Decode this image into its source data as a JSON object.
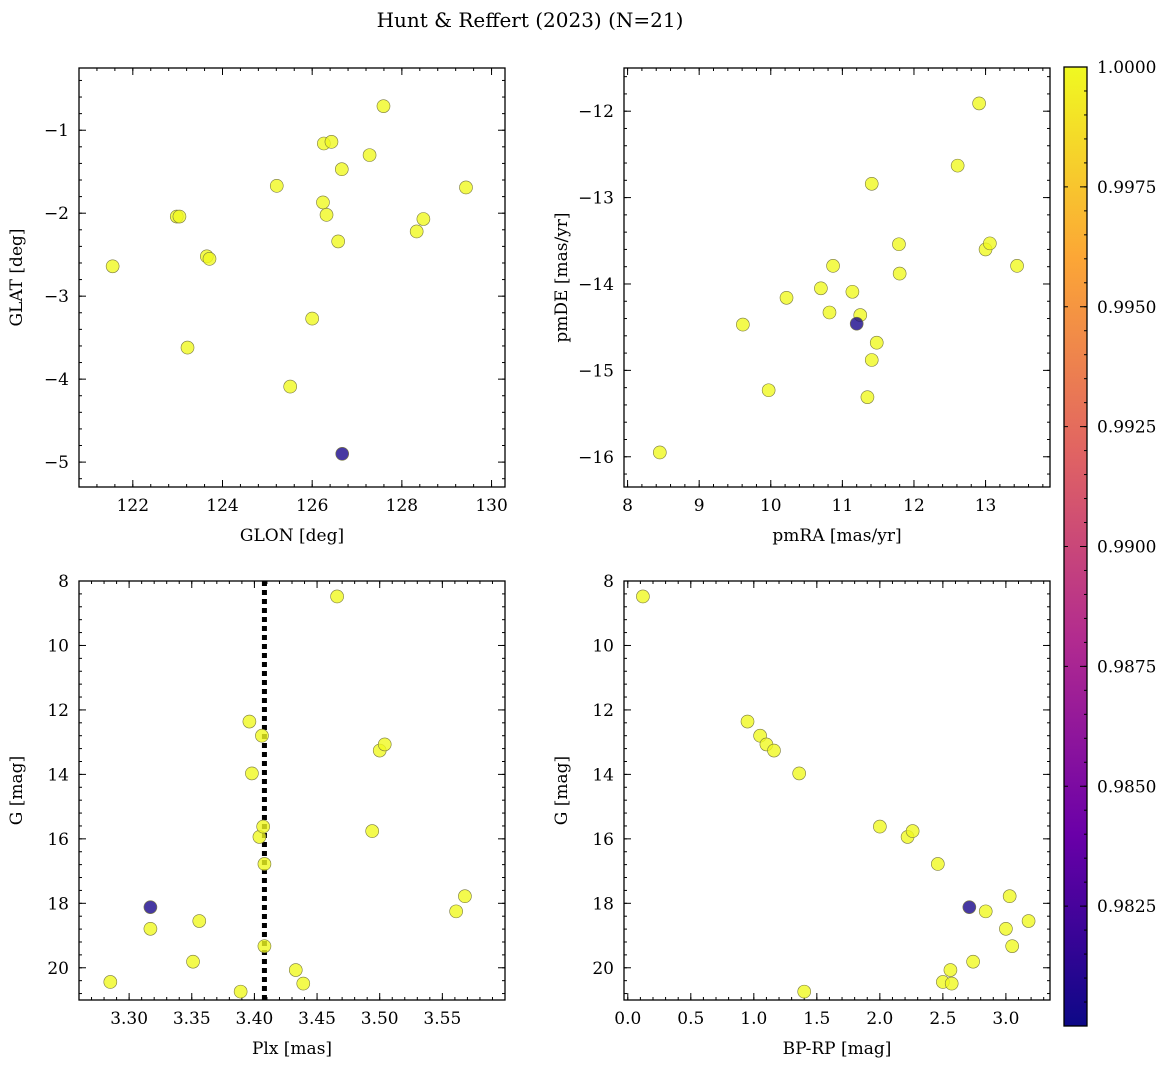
{
  "figure": {
    "title": "Hunt & Reffert (2023) (N=21)"
  },
  "colorbar": {
    "min": 0.98,
    "max": 1.0,
    "colormap": [
      "#0d0887",
      "#6a00a8",
      "#b12a90",
      "#e16462",
      "#fca636",
      "#f0f921"
    ],
    "ticks": [
      "0.9825",
      "0.9850",
      "0.9875",
      "0.9900",
      "0.9925",
      "0.9950",
      "0.9975",
      "1.0000"
    ],
    "tick_values": [
      0.9825,
      0.985,
      0.9875,
      0.99,
      0.9925,
      0.995,
      0.9975,
      1.0
    ]
  },
  "chart_data": [
    {
      "type": "scatter",
      "title": "",
      "xlabel": "GLON [deg]",
      "ylabel": "GLAT [deg]",
      "xlim": [
        120.8,
        130.3
      ],
      "ylim": [
        -5.3,
        -0.25
      ],
      "x_reversed": false,
      "y_reversed": false,
      "xticks": [
        122,
        124,
        126,
        128,
        130
      ],
      "xtick_labels": [
        "122",
        "124",
        "126",
        "128",
        "130"
      ],
      "yticks": [
        -5,
        -4,
        -3,
        -2,
        -1
      ],
      "ytick_labels": [
        "−5",
        "−4",
        "−3",
        "−2",
        "−1"
      ],
      "points": [
        {
          "x": 121.55,
          "y": -2.64,
          "c": 1.0
        },
        {
          "x": 122.98,
          "y": -2.04,
          "c": 1.0
        },
        {
          "x": 123.04,
          "y": -2.04,
          "c": 1.0
        },
        {
          "x": 123.22,
          "y": -3.62,
          "c": 1.0
        },
        {
          "x": 123.65,
          "y": -2.52,
          "c": 1.0
        },
        {
          "x": 123.71,
          "y": -2.55,
          "c": 1.0
        },
        {
          "x": 125.21,
          "y": -1.67,
          "c": 1.0
        },
        {
          "x": 125.51,
          "y": -4.09,
          "c": 1.0
        },
        {
          "x": 126.0,
          "y": -3.27,
          "c": 1.0
        },
        {
          "x": 126.24,
          "y": -1.87,
          "c": 1.0
        },
        {
          "x": 126.26,
          "y": -1.16,
          "c": 1.0
        },
        {
          "x": 126.32,
          "y": -2.02,
          "c": 1.0
        },
        {
          "x": 126.43,
          "y": -1.14,
          "c": 1.0
        },
        {
          "x": 126.58,
          "y": -2.34,
          "c": 1.0
        },
        {
          "x": 126.66,
          "y": -1.47,
          "c": 1.0
        },
        {
          "x": 127.28,
          "y": -1.3,
          "c": 1.0
        },
        {
          "x": 127.59,
          "y": -0.71,
          "c": 1.0
        },
        {
          "x": 128.33,
          "y": -2.22,
          "c": 1.0
        },
        {
          "x": 128.48,
          "y": -2.07,
          "c": 1.0
        },
        {
          "x": 129.43,
          "y": -1.69,
          "c": 1.0
        },
        {
          "x": 126.67,
          "y": -4.9,
          "c": 0.9805
        }
      ]
    },
    {
      "type": "scatter",
      "title": "",
      "xlabel": "pmRA [mas/yr]",
      "ylabel": "pmDE [mas/yr]",
      "xlim": [
        7.95,
        13.9
      ],
      "ylim": [
        -16.35,
        -11.5
      ],
      "x_reversed": false,
      "y_reversed": false,
      "xticks": [
        8,
        9,
        10,
        11,
        12,
        13
      ],
      "xtick_labels": [
        "8",
        "9",
        "10",
        "11",
        "12",
        "13"
      ],
      "yticks": [
        -16,
        -15,
        -14,
        -13,
        -12
      ],
      "ytick_labels": [
        "−16",
        "−15",
        "−14",
        "−13",
        "−12"
      ],
      "points": [
        {
          "x": 8.45,
          "y": -15.95,
          "c": 1.0
        },
        {
          "x": 9.61,
          "y": -14.47,
          "c": 1.0
        },
        {
          "x": 9.97,
          "y": -15.23,
          "c": 1.0
        },
        {
          "x": 10.22,
          "y": -14.16,
          "c": 1.0
        },
        {
          "x": 10.7,
          "y": -14.05,
          "c": 1.0
        },
        {
          "x": 10.82,
          "y": -14.33,
          "c": 1.0
        },
        {
          "x": 10.87,
          "y": -13.79,
          "c": 1.0
        },
        {
          "x": 11.14,
          "y": -14.09,
          "c": 1.0
        },
        {
          "x": 11.25,
          "y": -14.36,
          "c": 1.0
        },
        {
          "x": 11.35,
          "y": -15.31,
          "c": 1.0
        },
        {
          "x": 11.41,
          "y": -12.84,
          "c": 1.0
        },
        {
          "x": 11.41,
          "y": -14.88,
          "c": 1.0
        },
        {
          "x": 11.48,
          "y": -14.68,
          "c": 1.0
        },
        {
          "x": 11.79,
          "y": -13.54,
          "c": 1.0
        },
        {
          "x": 11.8,
          "y": -13.88,
          "c": 1.0
        },
        {
          "x": 12.61,
          "y": -12.63,
          "c": 1.0
        },
        {
          "x": 12.91,
          "y": -11.91,
          "c": 1.0
        },
        {
          "x": 13.0,
          "y": -13.6,
          "c": 1.0
        },
        {
          "x": 13.06,
          "y": -13.53,
          "c": 1.0
        },
        {
          "x": 13.44,
          "y": -13.79,
          "c": 1.0
        },
        {
          "x": 11.2,
          "y": -14.46,
          "c": 0.9805
        }
      ]
    },
    {
      "type": "scatter",
      "title": "",
      "xlabel": "Plx [mas]",
      "ylabel": "G [mag]",
      "xlim": [
        3.26,
        3.6
      ],
      "ylim": [
        8.0,
        21.0
      ],
      "x_reversed": false,
      "y_reversed": true,
      "xticks": [
        3.3,
        3.35,
        3.4,
        3.45,
        3.5,
        3.55
      ],
      "xtick_labels": [
        "3.30",
        "3.35",
        "3.40",
        "3.45",
        "3.50",
        "3.55"
      ],
      "yticks": [
        8,
        10,
        12,
        14,
        16,
        18,
        20
      ],
      "ytick_labels": [
        "8",
        "10",
        "12",
        "14",
        "16",
        "18",
        "20"
      ],
      "vline": {
        "x": 3.408,
        "style": "dotted",
        "color": "#000000"
      },
      "points": [
        {
          "x": 3.285,
          "y": 20.44,
          "c": 1.0
        },
        {
          "x": 3.317,
          "y": 18.79,
          "c": 1.0
        },
        {
          "x": 3.351,
          "y": 19.81,
          "c": 1.0
        },
        {
          "x": 3.356,
          "y": 18.55,
          "c": 1.0
        },
        {
          "x": 3.389,
          "y": 20.74,
          "c": 1.0
        },
        {
          "x": 3.396,
          "y": 12.36,
          "c": 1.0
        },
        {
          "x": 3.398,
          "y": 13.97,
          "c": 1.0
        },
        {
          "x": 3.404,
          "y": 15.94,
          "c": 1.0
        },
        {
          "x": 3.406,
          "y": 12.8,
          "c": 1.0
        },
        {
          "x": 3.407,
          "y": 15.62,
          "c": 1.0
        },
        {
          "x": 3.408,
          "y": 16.78,
          "c": 1.0
        },
        {
          "x": 3.408,
          "y": 19.33,
          "c": 1.0
        },
        {
          "x": 3.433,
          "y": 20.07,
          "c": 1.0
        },
        {
          "x": 3.439,
          "y": 20.49,
          "c": 1.0
        },
        {
          "x": 3.466,
          "y": 8.48,
          "c": 1.0
        },
        {
          "x": 3.494,
          "y": 15.76,
          "c": 1.0
        },
        {
          "x": 3.5,
          "y": 13.26,
          "c": 1.0
        },
        {
          "x": 3.504,
          "y": 13.07,
          "c": 1.0
        },
        {
          "x": 3.561,
          "y": 18.25,
          "c": 1.0
        },
        {
          "x": 3.568,
          "y": 17.78,
          "c": 1.0
        },
        {
          "x": 3.317,
          "y": 18.12,
          "c": 0.9805
        }
      ]
    },
    {
      "type": "scatter",
      "title": "",
      "xlabel": "BP-RP [mag]",
      "ylabel": "G [mag]",
      "xlim": [
        -0.03,
        3.35
      ],
      "ylim": [
        8.0,
        21.0
      ],
      "x_reversed": false,
      "y_reversed": true,
      "xticks": [
        0.0,
        0.5,
        1.0,
        1.5,
        2.0,
        2.5,
        3.0
      ],
      "xtick_labels": [
        "0.0",
        "0.5",
        "1.0",
        "1.5",
        "2.0",
        "2.5",
        "3.0"
      ],
      "yticks": [
        8,
        10,
        12,
        14,
        16,
        18,
        20
      ],
      "ytick_labels": [
        "8",
        "10",
        "12",
        "14",
        "16",
        "18",
        "20"
      ],
      "points": [
        {
          "x": 0.12,
          "y": 8.48,
          "c": 1.0
        },
        {
          "x": 0.95,
          "y": 12.36,
          "c": 1.0
        },
        {
          "x": 1.05,
          "y": 12.8,
          "c": 1.0
        },
        {
          "x": 1.1,
          "y": 13.07,
          "c": 1.0
        },
        {
          "x": 1.16,
          "y": 13.26,
          "c": 1.0
        },
        {
          "x": 1.36,
          "y": 13.97,
          "c": 1.0
        },
        {
          "x": 1.4,
          "y": 20.74,
          "c": 1.0
        },
        {
          "x": 2.0,
          "y": 15.62,
          "c": 1.0
        },
        {
          "x": 2.22,
          "y": 15.94,
          "c": 1.0
        },
        {
          "x": 2.26,
          "y": 15.76,
          "c": 1.0
        },
        {
          "x": 2.46,
          "y": 16.78,
          "c": 1.0
        },
        {
          "x": 2.5,
          "y": 20.44,
          "c": 1.0
        },
        {
          "x": 2.56,
          "y": 20.07,
          "c": 1.0
        },
        {
          "x": 2.57,
          "y": 20.49,
          "c": 1.0
        },
        {
          "x": 2.74,
          "y": 19.81,
          "c": 1.0
        },
        {
          "x": 2.84,
          "y": 18.25,
          "c": 1.0
        },
        {
          "x": 3.0,
          "y": 18.79,
          "c": 1.0
        },
        {
          "x": 3.03,
          "y": 17.78,
          "c": 1.0
        },
        {
          "x": 3.05,
          "y": 19.33,
          "c": 1.0
        },
        {
          "x": 3.18,
          "y": 18.55,
          "c": 1.0
        },
        {
          "x": 2.71,
          "y": 18.12,
          "c": 0.9805
        }
      ]
    }
  ]
}
